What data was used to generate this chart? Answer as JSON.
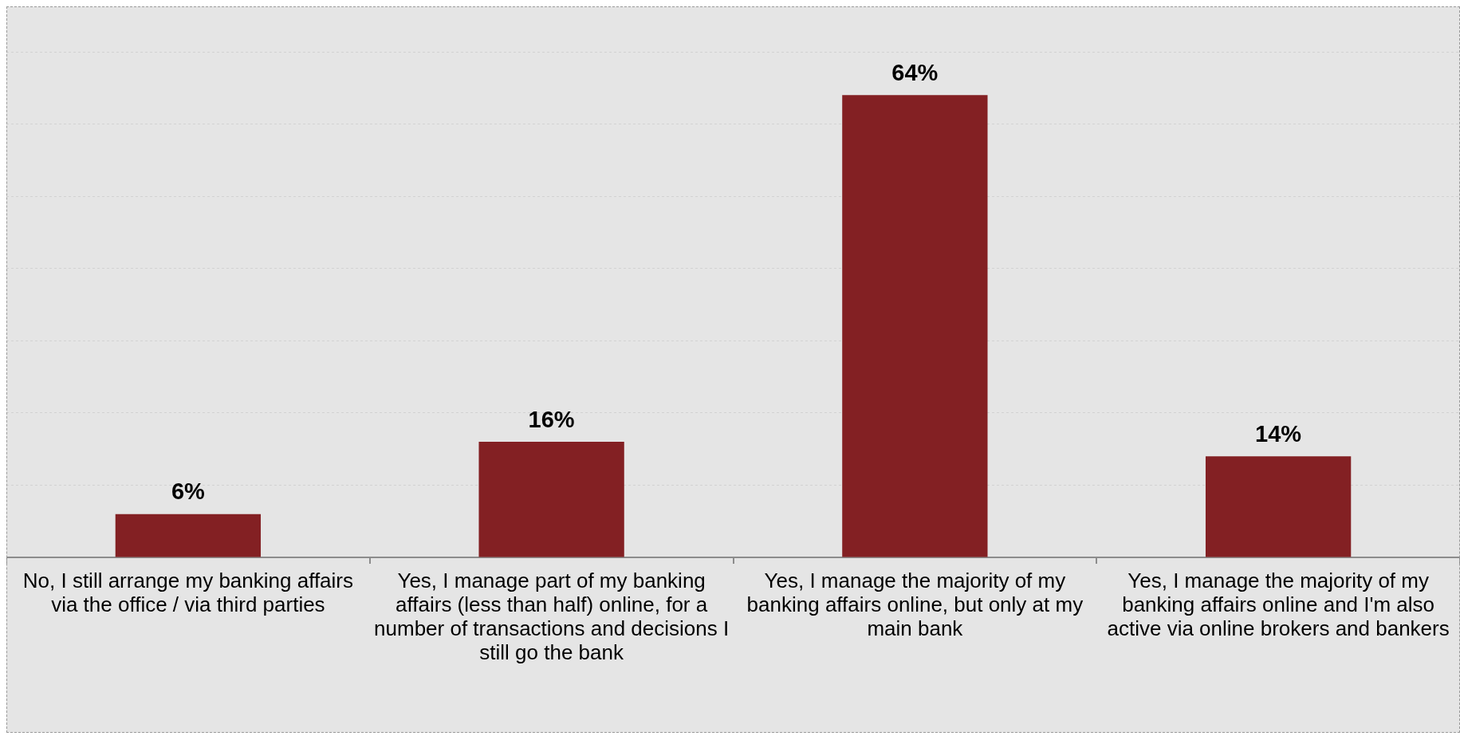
{
  "chart_data": {
    "type": "bar",
    "categories": [
      "No, I still arrange my banking affairs via the office / via third parties",
      "Yes, I manage part of my banking affairs (less than half) online, for a number of transactions and decisions I still go the bank",
      "Yes, I manage the majority of my banking affairs online, but only at my main bank",
      "Yes, I manage the majority of my banking affairs online and I'm also active via online brokers and bankers"
    ],
    "values": [
      6,
      16,
      64,
      14
    ],
    "color": "#832023",
    "value_labels": [
      "6%",
      "16%",
      "64%",
      "14%"
    ],
    "ylim": [
      0,
      70
    ],
    "yticks": [
      {
        "value": 0,
        "label": null
      },
      {
        "value": 10,
        "label": null
      },
      {
        "value": 20,
        "label": null
      },
      {
        "value": 30,
        "label": null
      },
      {
        "value": 40,
        "label": null
      },
      {
        "value": 50,
        "label": null
      },
      {
        "value": 60,
        "label": null
      },
      {
        "value": 70,
        "label": null
      }
    ],
    "grid": "y",
    "tick_labels": "x"
  }
}
